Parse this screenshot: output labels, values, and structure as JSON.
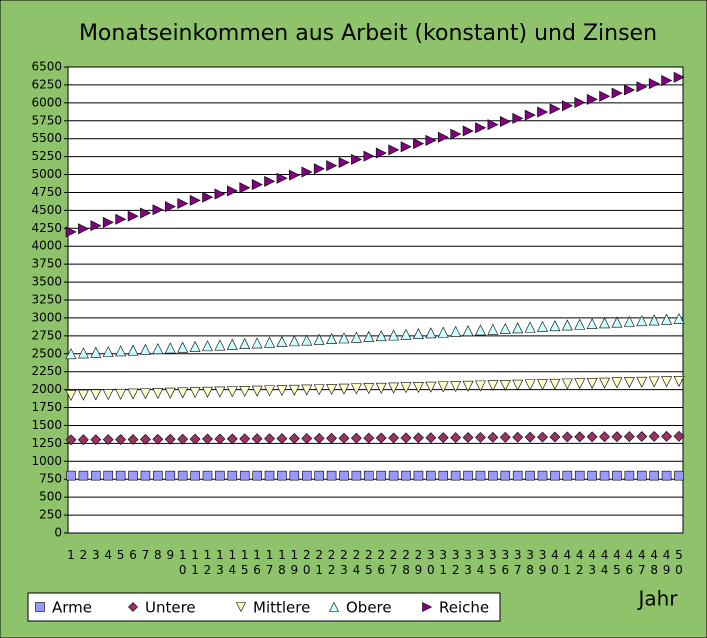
{
  "chart_data": {
    "type": "line",
    "title": "Monatseinkommen aus Arbeit (konstant) und Zinsen",
    "x_label": "Jahr",
    "categories": [
      "1",
      "2",
      "3",
      "4",
      "5",
      "6",
      "7",
      "8",
      "9",
      "10",
      "11",
      "12",
      "13",
      "14",
      "15",
      "16",
      "17",
      "18",
      "19",
      "20",
      "21",
      "22",
      "23",
      "24",
      "25",
      "26",
      "27",
      "28",
      "29",
      "30",
      "31",
      "32",
      "33",
      "34",
      "35",
      "36",
      "37",
      "38",
      "39",
      "40",
      "41",
      "42",
      "43",
      "44",
      "45",
      "46",
      "47",
      "48",
      "49",
      "50"
    ],
    "ylim": [
      0,
      6500
    ],
    "yticks": [
      0,
      250,
      500,
      750,
      1000,
      1250,
      1500,
      1750,
      2000,
      2250,
      2500,
      2750,
      3000,
      3250,
      3500,
      3750,
      4000,
      4250,
      4500,
      4750,
      5000,
      5250,
      5500,
      5750,
      6000,
      6250,
      6500
    ],
    "grid": true,
    "legend": "bottom",
    "series": [
      {
        "name": "Arme",
        "color": "#9999ff",
        "marker": "square",
        "values": [
          800,
          800,
          800,
          800,
          800,
          800,
          800,
          800,
          800,
          800,
          800,
          800,
          800,
          800,
          800,
          800,
          800,
          800,
          800,
          800,
          800,
          800,
          800,
          800,
          800,
          800,
          800,
          800,
          800,
          800,
          800,
          800,
          800,
          800,
          800,
          800,
          800,
          800,
          800,
          800,
          800,
          800,
          800,
          800,
          800,
          800,
          800,
          800,
          800,
          800
        ]
      },
      {
        "name": "Untere",
        "color": "#993366",
        "marker": "diamond",
        "values": [
          1300,
          1301,
          1302,
          1303,
          1304,
          1305,
          1306,
          1307,
          1308,
          1309,
          1310,
          1311,
          1312,
          1313,
          1314,
          1315,
          1316,
          1317,
          1318,
          1319,
          1320,
          1321,
          1322,
          1323,
          1324,
          1325,
          1326,
          1327,
          1328,
          1329,
          1330,
          1331,
          1332,
          1333,
          1334,
          1335,
          1336,
          1337,
          1338,
          1339,
          1340,
          1341,
          1342,
          1343,
          1344,
          1345,
          1346,
          1347,
          1348,
          1349
        ]
      },
      {
        "name": "Mittlere",
        "color": "#ffffcc",
        "marker": "triangle-down",
        "values": [
          1920,
          1924,
          1928,
          1932,
          1936,
          1940,
          1944,
          1948,
          1952,
          1956,
          1960,
          1964,
          1968,
          1972,
          1976,
          1980,
          1984,
          1988,
          1992,
          1996,
          2000,
          2004,
          2008,
          2012,
          2016,
          2020,
          2024,
          2028,
          2032,
          2036,
          2040,
          2044,
          2048,
          2052,
          2056,
          2060,
          2064,
          2068,
          2072,
          2076,
          2080,
          2084,
          2088,
          2092,
          2096,
          2100,
          2104,
          2108,
          2112,
          2116
        ]
      },
      {
        "name": "Obere",
        "color": "#ccffff",
        "marker": "triangle-up",
        "values": [
          2500,
          2510,
          2520,
          2530,
          2540,
          2550,
          2560,
          2570,
          2580,
          2590,
          2600,
          2610,
          2620,
          2630,
          2640,
          2650,
          2660,
          2670,
          2680,
          2690,
          2700,
          2710,
          2720,
          2730,
          2740,
          2750,
          2760,
          2770,
          2780,
          2790,
          2800,
          2810,
          2820,
          2830,
          2840,
          2850,
          2860,
          2870,
          2880,
          2890,
          2900,
          2910,
          2920,
          2930,
          2940,
          2950,
          2960,
          2970,
          2980,
          2990
        ]
      },
      {
        "name": "Reiche",
        "color": "#800080",
        "marker": "triangle-right",
        "values": [
          4200,
          4244,
          4288,
          4332,
          4376,
          4420,
          4464,
          4508,
          4552,
          4596,
          4640,
          4684,
          4728,
          4772,
          4816,
          4860,
          4904,
          4948,
          4992,
          5036,
          5080,
          5124,
          5168,
          5212,
          5256,
          5300,
          5344,
          5388,
          5432,
          5476,
          5520,
          5564,
          5608,
          5652,
          5696,
          5740,
          5784,
          5828,
          5872,
          5916,
          5960,
          6004,
          6048,
          6092,
          6136,
          6180,
          6224,
          6268,
          6312,
          6356
        ]
      }
    ]
  }
}
